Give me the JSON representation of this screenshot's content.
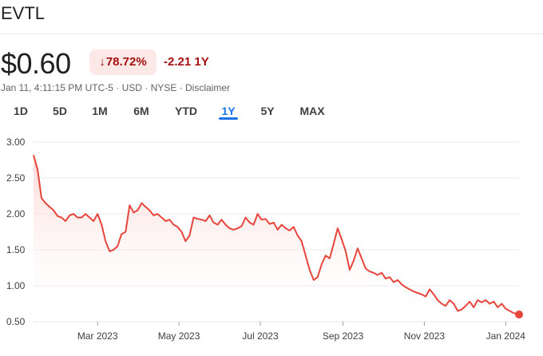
{
  "quote": {
    "ticker": "EVTL",
    "price": "$0.60",
    "change_arrow": "↓",
    "change_pct": "78.72%",
    "change_abs": "-2.21 1Y",
    "timestamp": "Jan 11, 4:11:15 PM UTC-5",
    "currency": "USD",
    "exchange": "NYSE",
    "disclaimer": "Disclaimer",
    "sep": " · "
  },
  "ranges": [
    {
      "label": "1D"
    },
    {
      "label": "5D"
    },
    {
      "label": "1M"
    },
    {
      "label": "6M"
    },
    {
      "label": "YTD"
    },
    {
      "label": "1Y",
      "active": true
    },
    {
      "label": "5Y"
    },
    {
      "label": "MAX"
    }
  ],
  "colors": {
    "line": "#e8453c",
    "down_text": "#a50e0e",
    "down_bg": "#fce8e6",
    "accent": "#1a73e8"
  },
  "chart_data": {
    "type": "area",
    "title": "",
    "xlabel": "",
    "ylabel": "",
    "ylim": [
      0.5,
      3.0
    ],
    "yticks": [
      "3.00",
      "2.50",
      "2.00",
      "1.50",
      "1.00",
      "0.50"
    ],
    "ytick_values": [
      3.0,
      2.5,
      2.0,
      1.5,
      1.0,
      0.5
    ],
    "xticks": [
      {
        "label": "Mar 2023",
        "date": "2023-03-01"
      },
      {
        "label": "May 2023",
        "date": "2023-05-01"
      },
      {
        "label": "Jul 2023",
        "date": "2023-07-01"
      },
      {
        "label": "Sep 2023",
        "date": "2023-09-01"
      },
      {
        "label": "Nov 2023",
        "date": "2023-11-01"
      },
      {
        "label": "Jan 2024",
        "date": "2024-01-01"
      }
    ],
    "xrange": [
      "2023-01-12",
      "2024-01-11"
    ],
    "grid": true,
    "last_point_marker": true,
    "series": [
      {
        "x": [
          "2023-01-12",
          "2023-01-15",
          "2023-01-18",
          "2023-01-21",
          "2023-01-24",
          "2023-01-27",
          "2023-01-30",
          "2023-02-02",
          "2023-02-05",
          "2023-02-08",
          "2023-02-11",
          "2023-02-14",
          "2023-02-17",
          "2023-02-20",
          "2023-02-23",
          "2023-02-26",
          "2023-03-01",
          "2023-03-04",
          "2023-03-07",
          "2023-03-10",
          "2023-03-13",
          "2023-03-16",
          "2023-03-19",
          "2023-03-22",
          "2023-03-25",
          "2023-03-28",
          "2023-03-31",
          "2023-04-03",
          "2023-04-06",
          "2023-04-09",
          "2023-04-12",
          "2023-04-15",
          "2023-04-18",
          "2023-04-21",
          "2023-04-24",
          "2023-04-27",
          "2023-04-30",
          "2023-05-03",
          "2023-05-06",
          "2023-05-09",
          "2023-05-12",
          "2023-05-15",
          "2023-05-18",
          "2023-05-21",
          "2023-05-24",
          "2023-05-27",
          "2023-05-30",
          "2023-06-02",
          "2023-06-05",
          "2023-06-08",
          "2023-06-11",
          "2023-06-14",
          "2023-06-17",
          "2023-06-20",
          "2023-06-23",
          "2023-06-26",
          "2023-06-29",
          "2023-07-02",
          "2023-07-05",
          "2023-07-08",
          "2023-07-11",
          "2023-07-14",
          "2023-07-17",
          "2023-07-20",
          "2023-07-23",
          "2023-07-26",
          "2023-07-29",
          "2023-08-01",
          "2023-08-04",
          "2023-08-07",
          "2023-08-10",
          "2023-08-13",
          "2023-08-16",
          "2023-08-19",
          "2023-08-22",
          "2023-08-25",
          "2023-08-28",
          "2023-08-31",
          "2023-09-03",
          "2023-09-06",
          "2023-09-09",
          "2023-09-12",
          "2023-09-15",
          "2023-09-18",
          "2023-09-21",
          "2023-09-24",
          "2023-09-27",
          "2023-09-30",
          "2023-10-03",
          "2023-10-06",
          "2023-10-09",
          "2023-10-12",
          "2023-10-15",
          "2023-10-18",
          "2023-10-21",
          "2023-10-24",
          "2023-10-27",
          "2023-10-30",
          "2023-11-02",
          "2023-11-05",
          "2023-11-08",
          "2023-11-11",
          "2023-11-14",
          "2023-11-17",
          "2023-11-20",
          "2023-11-23",
          "2023-11-26",
          "2023-11-29",
          "2023-12-02",
          "2023-12-05",
          "2023-12-08",
          "2023-12-11",
          "2023-12-14",
          "2023-12-17",
          "2023-12-20",
          "2023-12-23",
          "2023-12-26",
          "2023-12-29",
          "2024-01-01",
          "2024-01-04",
          "2024-01-07",
          "2024-01-11"
        ],
        "values": [
          2.82,
          2.62,
          2.22,
          2.15,
          2.1,
          2.05,
          1.97,
          1.95,
          1.9,
          1.98,
          2.0,
          1.95,
          1.95,
          2.0,
          1.95,
          1.9,
          2.0,
          1.85,
          1.62,
          1.48,
          1.5,
          1.55,
          1.72,
          1.75,
          2.12,
          2.02,
          2.05,
          2.15,
          2.1,
          2.05,
          1.98,
          2.0,
          1.95,
          1.9,
          1.92,
          1.85,
          1.82,
          1.75,
          1.62,
          1.7,
          1.95,
          1.93,
          1.92,
          1.9,
          1.98,
          1.88,
          1.85,
          1.92,
          1.85,
          1.8,
          1.78,
          1.8,
          1.83,
          1.95,
          1.88,
          1.85,
          2.0,
          1.92,
          1.93,
          1.86,
          1.88,
          1.78,
          1.85,
          1.8,
          1.77,
          1.82,
          1.7,
          1.62,
          1.42,
          1.22,
          1.08,
          1.12,
          1.3,
          1.42,
          1.38,
          1.58,
          1.8,
          1.65,
          1.48,
          1.22,
          1.35,
          1.52,
          1.38,
          1.24,
          1.2,
          1.18,
          1.15,
          1.18,
          1.1,
          1.12,
          1.05,
          1.08,
          1.02,
          0.98,
          0.95,
          0.92,
          0.9,
          0.88,
          0.85,
          0.95,
          0.88,
          0.8,
          0.75,
          0.72,
          0.8,
          0.75,
          0.65,
          0.67,
          0.72,
          0.78,
          0.7,
          0.8,
          0.77,
          0.8,
          0.75,
          0.78,
          0.7,
          0.75,
          0.68,
          0.65,
          0.62,
          0.6
        ]
      }
    ]
  }
}
